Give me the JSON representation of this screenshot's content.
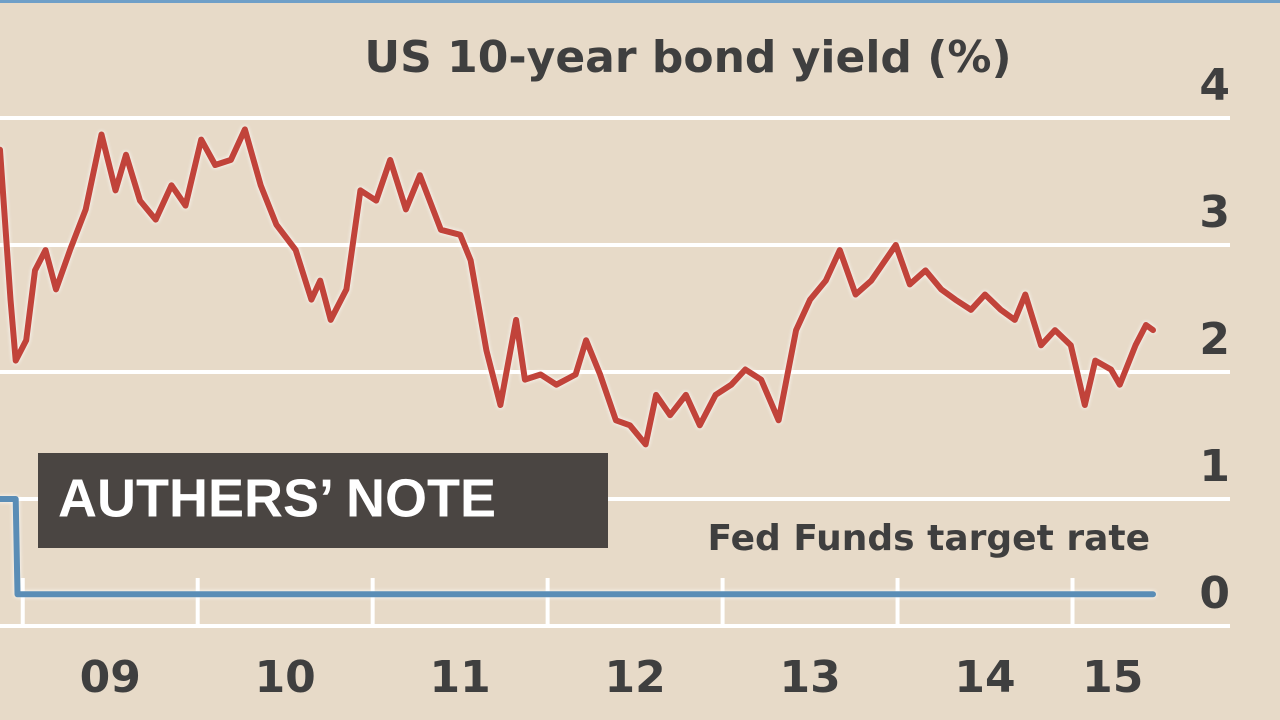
{
  "banner": "AUTHERS’ NOTE",
  "chart_data": {
    "type": "line",
    "title": "US 10-year bond yield (%)",
    "annotation": "Fed Funds target rate",
    "xlim": [
      2008.87,
      2015.46
    ],
    "xticks": [
      {
        "value": 2009,
        "label": "09"
      },
      {
        "value": 2010,
        "label": "10"
      },
      {
        "value": 2011,
        "label": "11"
      },
      {
        "value": 2012,
        "label": "12"
      },
      {
        "value": 2013,
        "label": "13"
      },
      {
        "value": 2014,
        "label": "14"
      },
      {
        "value": 2015,
        "label": "15"
      }
    ],
    "ylim": [
      0,
      4
    ],
    "yticks": [
      0,
      1,
      2,
      3,
      4
    ],
    "grid": true,
    "series": [
      {
        "name": "US 10-year bond yield",
        "color": "#c1433a",
        "x": [
          2008.87,
          2008.93,
          2008.96,
          2009.02,
          2009.07,
          2009.13,
          2009.19,
          2009.27,
          2009.36,
          2009.45,
          2009.53,
          2009.59,
          2009.67,
          2009.76,
          2009.85,
          2009.93,
          2010.02,
          2010.1,
          2010.19,
          2010.27,
          2010.36,
          2010.45,
          2010.56,
          2010.65,
          2010.7,
          2010.76,
          2010.85,
          2010.93,
          2011.02,
          2011.1,
          2011.19,
          2011.27,
          2011.39,
          2011.5,
          2011.56,
          2011.65,
          2011.73,
          2011.82,
          2011.87,
          2011.96,
          2012.05,
          2012.16,
          2012.22,
          2012.3,
          2012.39,
          2012.47,
          2012.56,
          2012.62,
          2012.7,
          2012.79,
          2012.87,
          2012.96,
          2013.05,
          2013.13,
          2013.22,
          2013.32,
          2013.42,
          2013.5,
          2013.59,
          2013.67,
          2013.76,
          2013.85,
          2013.93,
          2013.99,
          2014.07,
          2014.16,
          2014.25,
          2014.33,
          2014.42,
          2014.5,
          2014.59,
          2014.67,
          2014.73,
          2014.82,
          2014.9,
          2014.99,
          2015.07,
          2015.13,
          2015.22,
          2015.27,
          2015.36,
          2015.42,
          2015.46
        ],
        "values": [
          3.75,
          2.57,
          2.09,
          2.25,
          2.8,
          2.96,
          2.65,
          2.96,
          3.28,
          3.87,
          3.43,
          3.71,
          3.35,
          3.2,
          3.47,
          3.31,
          3.83,
          3.63,
          3.67,
          3.91,
          3.47,
          3.16,
          2.96,
          2.57,
          2.72,
          2.41,
          2.65,
          3.43,
          3.35,
          3.67,
          3.28,
          3.55,
          3.12,
          3.08,
          2.88,
          2.17,
          1.74,
          2.41,
          1.94,
          1.98,
          1.9,
          1.98,
          2.25,
          1.98,
          1.62,
          1.58,
          1.43,
          1.82,
          1.66,
          1.82,
          1.58,
          1.82,
          1.9,
          2.02,
          1.94,
          1.62,
          2.33,
          2.57,
          2.72,
          2.96,
          2.61,
          2.72,
          2.88,
          3.0,
          2.69,
          2.8,
          2.65,
          2.57,
          2.49,
          2.61,
          2.49,
          2.41,
          2.61,
          2.21,
          2.33,
          2.21,
          1.74,
          2.09,
          2.02,
          1.9,
          2.21,
          2.37,
          2.33
        ]
      },
      {
        "name": "Fed Funds target rate",
        "color": "#5a8db6",
        "x": [
          2008.87,
          2008.96,
          2008.97,
          2015.46
        ],
        "values": [
          1,
          1,
          0.25,
          0.25
        ]
      }
    ]
  }
}
